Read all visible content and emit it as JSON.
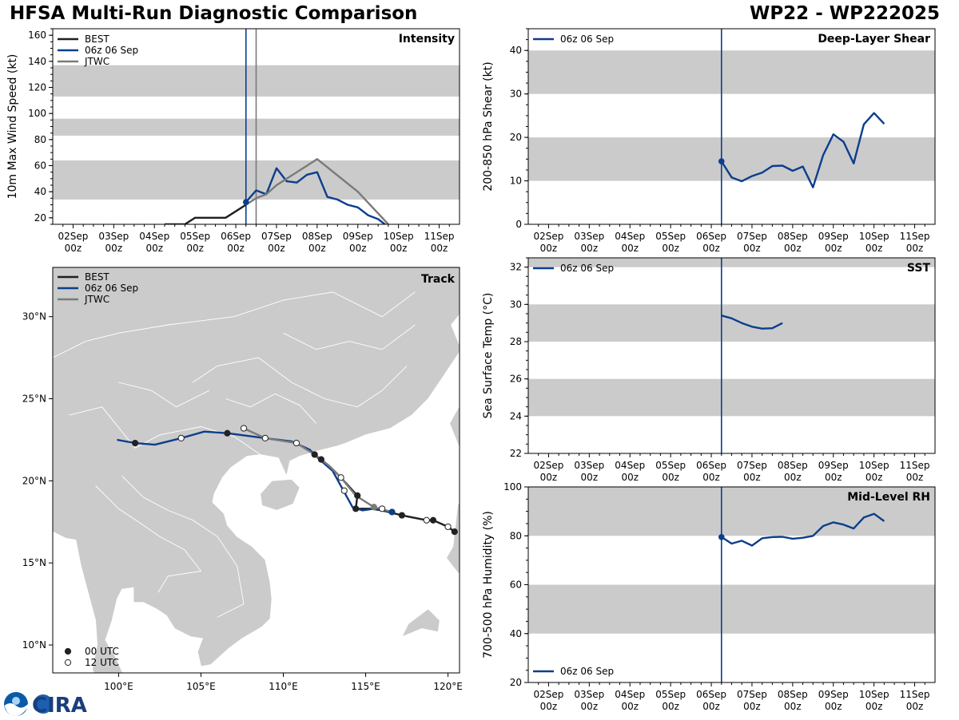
{
  "header": {
    "title": "HFSA Multi-Run Diagnostic Comparison",
    "storm_id": "WP22 - WP222025"
  },
  "logo": {
    "text": "CIRA",
    "agency": "NOAA"
  },
  "colors": {
    "best": "#1f1f1f",
    "run": "#0b3e8c",
    "jtwc": "#7a7a7a",
    "band": "#cbcbcb",
    "land": "#cbcbcb",
    "border": "#ffffff"
  },
  "time_axis": {
    "ticks": [
      {
        "day": 2,
        "label1": "02Sep",
        "label2": "00z"
      },
      {
        "day": 3,
        "label1": "03Sep",
        "label2": "00z"
      },
      {
        "day": 4,
        "label1": "04Sep",
        "label2": "00z"
      },
      {
        "day": 5,
        "label1": "05Sep",
        "label2": "00z"
      },
      {
        "day": 6,
        "label1": "06Sep",
        "label2": "00z"
      },
      {
        "day": 7,
        "label1": "07Sep",
        "label2": "00z"
      },
      {
        "day": 8,
        "label1": "08Sep",
        "label2": "00z"
      },
      {
        "day": 9,
        "label1": "09Sep",
        "label2": "00z"
      },
      {
        "day": 10,
        "label1": "10Sep",
        "label2": "00z"
      },
      {
        "day": 11,
        "label1": "11Sep",
        "label2": "00z"
      }
    ],
    "xlim": [
      1.5,
      11.5
    ],
    "init_day": 6.25
  },
  "chart_data": [
    {
      "id": "intensity",
      "type": "line",
      "title": "Intensity",
      "ylabel": "10m Max Wind Speed (kt)",
      "ylim": [
        15,
        165
      ],
      "yticks": [
        20,
        40,
        60,
        80,
        100,
        120,
        140,
        160
      ],
      "bands": [
        [
          34,
          64
        ],
        [
          83,
          96
        ],
        [
          113,
          137
        ]
      ],
      "vlines": [
        {
          "day": 6.25,
          "series": "run"
        },
        {
          "day": 6.5,
          "series": "jtwc"
        }
      ],
      "legend": [
        "BEST",
        "06z 06 Sep",
        "JTWC"
      ],
      "series": [
        {
          "name": "BEST",
          "key": "best",
          "x": [
            4.25,
            4.75,
            5.0,
            5.25,
            5.5,
            5.75,
            6.0,
            6.25
          ],
          "y": [
            15,
            15,
            20,
            20,
            20,
            20,
            25,
            30
          ]
        },
        {
          "name": "06z 06 Sep",
          "key": "run",
          "x": [
            6.25,
            6.5,
            6.75,
            7.0,
            7.25,
            7.5,
            7.75,
            8.0,
            8.25,
            8.5,
            8.75,
            9.0,
            9.25,
            9.5,
            9.75
          ],
          "y": [
            32,
            41,
            38,
            58,
            48,
            47,
            53,
            55,
            36,
            34,
            30,
            28,
            22,
            19,
            13
          ]
        },
        {
          "name": "JTWC",
          "key": "jtwc",
          "x": [
            6.25,
            6.5,
            6.75,
            7.0,
            8.0,
            9.0,
            9.75
          ],
          "y": [
            30,
            35,
            38,
            45,
            65,
            40,
            15
          ]
        }
      ],
      "markers": [
        {
          "x": 6.25,
          "y": 32,
          "series": "run"
        }
      ]
    },
    {
      "id": "shear",
      "type": "line",
      "title": "Deep-Layer Shear",
      "ylabel": "200-850 hPa Shear (kt)",
      "ylim": [
        0,
        45
      ],
      "yticks": [
        0,
        10,
        20,
        30,
        40
      ],
      "bands": [
        [
          10,
          20
        ],
        [
          30,
          40
        ]
      ],
      "vlines": [
        {
          "day": 6.25,
          "series": "run"
        }
      ],
      "legend": [
        "06z 06 Sep"
      ],
      "series": [
        {
          "name": "06z 06 Sep",
          "key": "run",
          "x": [
            6.25,
            6.5,
            6.75,
            7.0,
            7.25,
            7.5,
            7.75,
            8.0,
            8.25,
            8.5,
            8.75,
            9.0,
            9.25,
            9.5,
            9.75,
            10.0,
            10.25
          ],
          "y": [
            14.5,
            10.8,
            9.9,
            11.1,
            11.9,
            13.4,
            13.5,
            12.3,
            13.3,
            8.5,
            15.9,
            20.7,
            19.0,
            14.0,
            23.0,
            25.6,
            23.1
          ]
        }
      ],
      "markers": [
        {
          "x": 6.25,
          "y": 14.5,
          "series": "run"
        }
      ]
    },
    {
      "id": "sst",
      "type": "line",
      "title": "SST",
      "ylabel": "Sea Surface Temp (°C)",
      "ylim": [
        22,
        32.5
      ],
      "yticks": [
        22,
        24,
        26,
        28,
        30,
        32
      ],
      "bands": [
        [
          24,
          26
        ],
        [
          28,
          30
        ],
        [
          32,
          32.5
        ]
      ],
      "vlines": [
        {
          "day": 6.25,
          "series": "run"
        }
      ],
      "legend": [
        "06z 06 Sep"
      ],
      "series": [
        {
          "name": "06z 06 Sep",
          "key": "run",
          "x": [
            6.25,
            6.5,
            6.75,
            7.0,
            7.25,
            7.5,
            7.75
          ],
          "y": [
            29.4,
            29.25,
            29.0,
            28.8,
            28.7,
            28.72,
            29.0
          ]
        }
      ],
      "markers": []
    },
    {
      "id": "rh",
      "type": "line",
      "title": "Mid-Level RH",
      "ylabel": "700-500 hPa Humidity (%)",
      "ylim": [
        20,
        100
      ],
      "yticks": [
        20,
        40,
        60,
        80,
        100
      ],
      "bands": [
        [
          40,
          60
        ],
        [
          80,
          100
        ]
      ],
      "vlines": [
        {
          "day": 6.25,
          "series": "run"
        }
      ],
      "legend": [
        "06z 06 Sep"
      ],
      "series": [
        {
          "name": "06z 06 Sep",
          "key": "run",
          "x": [
            6.25,
            6.5,
            6.75,
            7.0,
            7.25,
            7.5,
            7.75,
            8.0,
            8.25,
            8.5,
            8.75,
            9.0,
            9.25,
            9.5,
            9.75,
            10.0,
            10.25
          ],
          "y": [
            79.5,
            76.8,
            78.0,
            76.0,
            79.0,
            79.5,
            79.6,
            78.8,
            79.2,
            80.0,
            84.0,
            85.5,
            84.6,
            83.0,
            87.5,
            89.0,
            86.0
          ]
        }
      ],
      "markers": [
        {
          "x": 6.25,
          "y": 79.5,
          "series": "run"
        }
      ]
    },
    {
      "id": "track",
      "type": "scatter",
      "title": "Track",
      "xlim": [
        96,
        120.7
      ],
      "ylim": [
        8.3,
        33
      ],
      "xticks": [
        {
          "v": 100,
          "label": "100°E"
        },
        {
          "v": 105,
          "label": "105°E"
        },
        {
          "v": 110,
          "label": "110°E"
        },
        {
          "v": 115,
          "label": "115°E"
        },
        {
          "v": 120,
          "label": "120°E"
        }
      ],
      "yticks": [
        {
          "v": 10,
          "label": "10°N"
        },
        {
          "v": 15,
          "label": "15°N"
        },
        {
          "v": 20,
          "label": "20°N"
        },
        {
          "v": 25,
          "label": "25°N"
        },
        {
          "v": 30,
          "label": "30°N"
        }
      ],
      "legend": [
        "BEST",
        "06z 06 Sep",
        "JTWC"
      ],
      "marker_legend": [
        "00 UTC",
        "12 UTC"
      ],
      "series": [
        {
          "name": "BEST",
          "key": "best",
          "lon": [
            120.4,
            120.0,
            119.1,
            118.7,
            117.2,
            116.0,
            115.3,
            114.4,
            114.5,
            113.5,
            112.8,
            112.3,
            111.9
          ],
          "lat": [
            16.9,
            17.2,
            17.6,
            17.6,
            17.9,
            18.2,
            18.3,
            18.3,
            19.1,
            20.2,
            20.9,
            21.3,
            21.6
          ]
        },
        {
          "name": "06z 06 Sep",
          "key": "run",
          "lon": [
            116.6,
            115.5,
            114.8,
            114.2,
            113.6,
            113.0,
            112.2,
            111.6,
            110.5,
            108.9,
            106.6,
            105.2,
            103.8,
            102.2,
            101.0,
            99.9
          ],
          "lat": [
            18.1,
            18.3,
            18.2,
            18.4,
            19.5,
            20.6,
            21.3,
            21.9,
            22.4,
            22.6,
            22.9,
            23.0,
            22.6,
            22.2,
            22.3,
            22.5
          ]
        },
        {
          "name": "JTWC",
          "key": "jtwc",
          "lon": [
            116.6,
            115.5,
            114.4,
            113.5,
            112.8,
            112.3,
            111.9,
            110.8,
            108.9,
            107.6
          ],
          "lat": [
            18.1,
            18.4,
            19.1,
            20.2,
            20.9,
            21.3,
            21.6,
            22.3,
            22.6,
            23.2
          ]
        }
      ],
      "points": [
        {
          "lon": 120.4,
          "lat": 16.9,
          "kind": "00"
        },
        {
          "lon": 120.0,
          "lat": 17.2,
          "kind": "12"
        },
        {
          "lon": 119.1,
          "lat": 17.6,
          "kind": "00"
        },
        {
          "lon": 118.7,
          "lat": 17.6,
          "kind": "12"
        },
        {
          "lon": 117.2,
          "lat": 17.9,
          "kind": "00"
        },
        {
          "lon": 116.0,
          "lat": 18.3,
          "kind": "12"
        },
        {
          "lon": 116.6,
          "lat": 18.1,
          "kind": "run"
        },
        {
          "lon": 115.5,
          "lat": 18.4,
          "kind": "jtwc"
        },
        {
          "lon": 114.4,
          "lat": 18.3,
          "kind": "00"
        },
        {
          "lon": 113.7,
          "lat": 19.4,
          "kind": "12"
        },
        {
          "lon": 114.5,
          "lat": 19.1,
          "kind": "00"
        },
        {
          "lon": 113.5,
          "lat": 20.2,
          "kind": "12"
        },
        {
          "lon": 112.3,
          "lat": 21.3,
          "kind": "00"
        },
        {
          "lon": 111.9,
          "lat": 21.6,
          "kind": "00"
        },
        {
          "lon": 110.8,
          "lat": 22.3,
          "kind": "12"
        },
        {
          "lon": 108.9,
          "lat": 22.6,
          "kind": "12"
        },
        {
          "lon": 107.6,
          "lat": 23.2,
          "kind": "12"
        },
        {
          "lon": 106.6,
          "lat": 22.9,
          "kind": "00"
        },
        {
          "lon": 103.8,
          "lat": 22.6,
          "kind": "12"
        },
        {
          "lon": 101.0,
          "lat": 22.3,
          "kind": "00"
        }
      ]
    }
  ]
}
